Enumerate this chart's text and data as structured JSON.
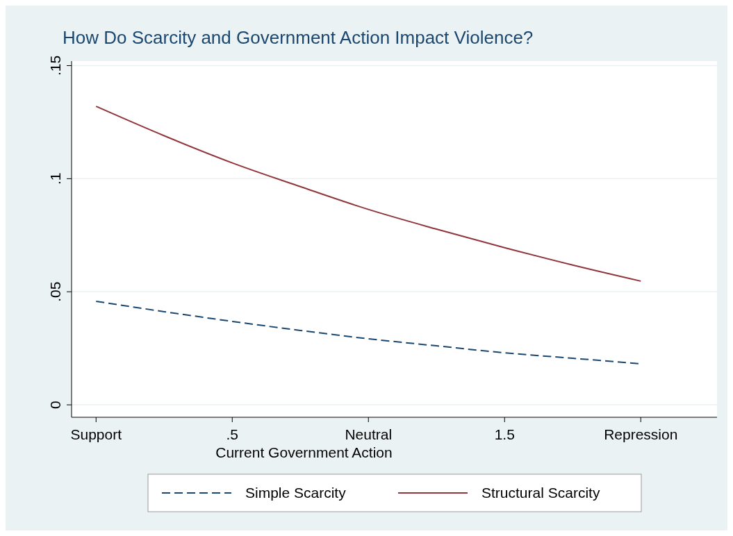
{
  "chart_data": {
    "type": "line",
    "title": "How Do Scarcity and Government Action Impact Violence?",
    "xlabel": "Current Government Action",
    "x": [
      0,
      0.25,
      0.5,
      0.75,
      1,
      1.25,
      1.5,
      1.75,
      2
    ],
    "series": [
      {
        "name": "Simple Scarcity",
        "color": "#1a476f",
        "line_style": "dashed",
        "values": [
          0.0458,
          0.0412,
          0.0369,
          0.0329,
          0.0292,
          0.0261,
          0.023,
          0.0206,
          0.0181
        ]
      },
      {
        "name": "Structural Scarcity",
        "color": "#90353b",
        "line_style": "solid",
        "values": [
          0.132,
          0.119,
          0.107,
          0.0965,
          0.0864,
          0.0777,
          0.0695,
          0.0618,
          0.0547
        ]
      }
    ],
    "xlim": [
      -0.09,
      2.28
    ],
    "xticks": [
      {
        "value": 0,
        "label": "Support"
      },
      {
        "value": 0.5,
        "label": ".5"
      },
      {
        "value": 1,
        "label": "Neutral"
      },
      {
        "value": 1.5,
        "label": "1.5"
      },
      {
        "value": 2,
        "label": "Repression"
      }
    ],
    "ylim": [
      -0.0055,
      0.152
    ],
    "yticks": [
      0,
      {
        "value": 0.05,
        "label": ".05"
      },
      {
        "value": 0.1,
        "label": ".1"
      },
      {
        "value": 0.15,
        "label": ".15"
      }
    ],
    "grid": "y",
    "legend": "bottom",
    "marker": "none"
  }
}
